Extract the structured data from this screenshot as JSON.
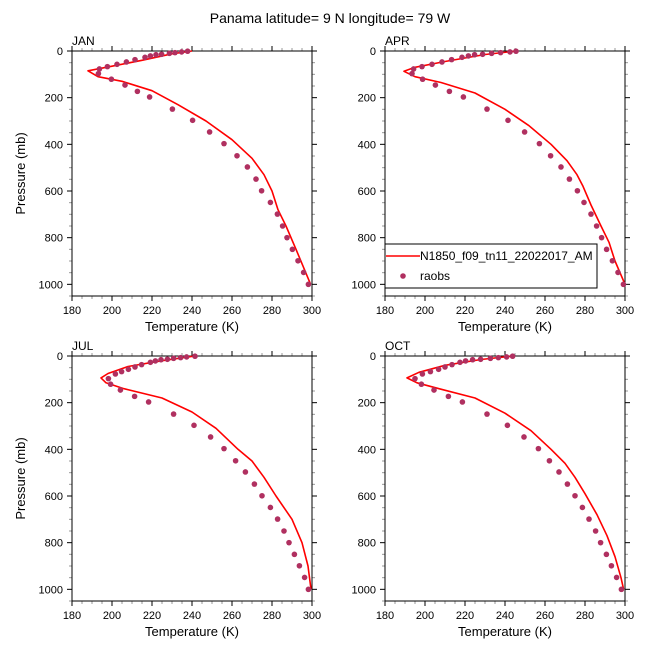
{
  "title": "Panama  latitude= 9 N longitude= 79 W",
  "colors": {
    "model": "#ff0000",
    "obs": "#b03060"
  },
  "legend": {
    "model_label": "N1850_f09_tn11_22022017_AM",
    "obs_label": "raobs",
    "placement": "lower-left of APR panel"
  },
  "chart_data": [
    {
      "type": "line",
      "panel": "JAN",
      "xlabel": "Temperature (K)",
      "ylabel": "Pressure (mb)",
      "xlim": [
        180,
        300
      ],
      "ylim": [
        1050,
        0
      ],
      "y_reversed": true,
      "xticks": [
        180,
        200,
        220,
        240,
        260,
        280,
        300
      ],
      "yticks": [
        0,
        200,
        400,
        600,
        800,
        1000
      ],
      "model": {
        "T": [
          240,
          230,
          215,
          200,
          188,
          193,
          205,
          220,
          233,
          247,
          260,
          270,
          276,
          280,
          283,
          287,
          292,
          299.3
        ],
        "p": [
          0,
          12,
          40,
          65,
          85,
          110,
          130,
          170,
          230,
          300,
          380,
          460,
          530,
          600,
          680,
          750,
          850,
          1000
        ]
      },
      "obs": {
        "p": [
          1,
          4,
          7,
          10,
          14,
          16,
          21,
          27,
          37,
          47,
          57,
          67,
          77,
          97,
          121,
          146,
          173,
          197,
          249,
          297,
          347,
          397,
          449,
          497,
          549,
          599,
          649,
          699,
          750,
          800,
          850,
          899,
          949,
          1000
        ],
        "T": [
          237.8,
          234.8,
          231.5,
          228.7,
          224.8,
          222,
          219.2,
          216.5,
          211.5,
          207.2,
          202.5,
          197.7,
          193.7,
          193.2,
          199.7,
          206.5,
          212.7,
          218.8,
          230.2,
          240.3,
          248.8,
          256,
          262.5,
          267.7,
          272,
          274.8,
          279.2,
          282.7,
          285.3,
          287.5,
          290.2,
          293,
          295.8,
          298.2
        ]
      }
    },
    {
      "type": "line",
      "panel": "APR",
      "xlabel": "Temperature (K)",
      "ylabel": "",
      "xlim": [
        180,
        300
      ],
      "ylim": [
        1050,
        0
      ],
      "y_reversed": true,
      "xticks": [
        180,
        200,
        220,
        240,
        260,
        280,
        300
      ],
      "yticks": [
        0,
        200,
        400,
        600,
        800,
        1000
      ],
      "model": {
        "T": [
          246,
          230,
          210,
          195,
          189.5,
          195,
          208,
          225,
          240,
          252,
          263,
          271,
          276,
          279,
          283,
          288,
          292,
          295,
          300
        ],
        "p": [
          0,
          15,
          45,
          70,
          87,
          110,
          135,
          180,
          250,
          320,
          400,
          470,
          530,
          580,
          660,
          750,
          820,
          900,
          1000
        ]
      },
      "obs": {
        "p": [
          1,
          4,
          7,
          10,
          14,
          16,
          21,
          27,
          37,
          47,
          57,
          67,
          77,
          97,
          121,
          146,
          173,
          197,
          249,
          297,
          347,
          397,
          449,
          497,
          549,
          599,
          649,
          699,
          750,
          800,
          850,
          899,
          949,
          1000
        ],
        "T": [
          245.5,
          242.5,
          237.8,
          233.3,
          228.8,
          224.8,
          221.7,
          218.5,
          213.3,
          208.5,
          203.5,
          198.5,
          194.3,
          193.5,
          198.8,
          205.2,
          212.2,
          219.2,
          231,
          241.5,
          249.8,
          257.2,
          262.8,
          268,
          272.2,
          276.2,
          279.5,
          283,
          285.8,
          288.3,
          290.8,
          293.7,
          296.5,
          299.2
        ]
      }
    },
    {
      "type": "line",
      "panel": "JUL",
      "xlabel": "Temperature (K)",
      "ylabel": "Pressure (mb)",
      "xlim": [
        180,
        300
      ],
      "ylim": [
        1050,
        0
      ],
      "y_reversed": true,
      "xticks": [
        180,
        200,
        220,
        240,
        260,
        280,
        300
      ],
      "yticks": [
        0,
        200,
        400,
        600,
        800,
        1000
      ],
      "model": {
        "T": [
          241.5,
          225,
          208,
          198,
          194.5,
          197,
          206,
          225,
          240,
          252,
          263,
          270,
          276,
          282,
          290,
          295,
          298,
          299.5
        ],
        "p": [
          0,
          20,
          45,
          75,
          94,
          115,
          140,
          180,
          240,
          310,
          400,
          450,
          520,
          600,
          700,
          800,
          900,
          1000
        ]
      },
      "obs": {
        "p": [
          1,
          4,
          7,
          10,
          14,
          16,
          21,
          27,
          37,
          47,
          57,
          67,
          77,
          97,
          121,
          146,
          173,
          197,
          249,
          297,
          347,
          397,
          449,
          497,
          549,
          599,
          649,
          699,
          750,
          800,
          850,
          899,
          949,
          1000
        ],
        "T": [
          241.5,
          237.3,
          234.3,
          230.8,
          227.7,
          224.5,
          221.7,
          219.2,
          214.8,
          211.5,
          208.2,
          204.8,
          201.7,
          198.2,
          199.3,
          204.2,
          211.3,
          218.3,
          230.8,
          241,
          249.3,
          256,
          261.8,
          266.7,
          271.2,
          275,
          279.2,
          282.8,
          286,
          288.5,
          291.2,
          293.7,
          296.3,
          298.2
        ]
      }
    },
    {
      "type": "line",
      "panel": "OCT",
      "xlabel": "Temperature (K)",
      "ylabel": "",
      "xlim": [
        180,
        300
      ],
      "ylim": [
        1050,
        0
      ],
      "y_reversed": true,
      "xticks": [
        180,
        200,
        220,
        240,
        260,
        280,
        300
      ],
      "yticks": [
        0,
        200,
        400,
        600,
        800,
        1000
      ],
      "model": {
        "T": [
          244,
          228,
          210,
          197,
          191,
          196,
          207,
          225,
          240,
          253,
          263,
          270,
          275,
          280,
          286,
          291,
          295,
          298,
          299.3
        ],
        "p": [
          0,
          15,
          40,
          70,
          94,
          115,
          140,
          180,
          245,
          320,
          400,
          460,
          520,
          590,
          680,
          770,
          860,
          950,
          1000
        ]
      },
      "obs": {
        "p": [
          1,
          4,
          7,
          10,
          14,
          16,
          21,
          27,
          37,
          47,
          57,
          67,
          77,
          97,
          121,
          146,
          173,
          197,
          249,
          297,
          347,
          397,
          449,
          497,
          549,
          599,
          649,
          699,
          750,
          800,
          850,
          899,
          949,
          1000
        ],
        "T": [
          243.8,
          240.8,
          236.7,
          232.7,
          227.8,
          223.8,
          220.3,
          217.5,
          213.5,
          210,
          206.8,
          202.7,
          198.7,
          195,
          198.2,
          204.5,
          211.7,
          218.7,
          231,
          241.2,
          249.5,
          256.7,
          262.2,
          267,
          271.2,
          275,
          278.7,
          282,
          285.3,
          287.8,
          290.7,
          293.2,
          295.8,
          298.2
        ]
      }
    }
  ]
}
